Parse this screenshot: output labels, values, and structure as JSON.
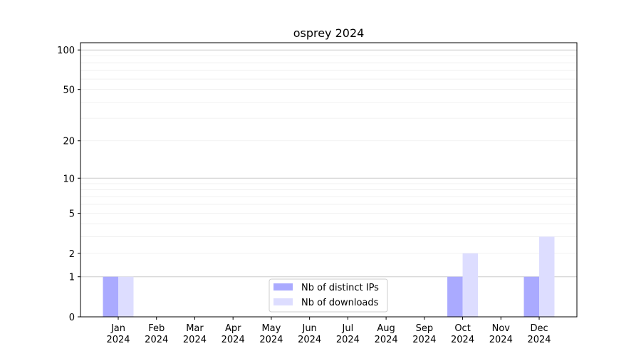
{
  "chart_data": {
    "type": "bar",
    "title": "osprey 2024",
    "xlabel": "",
    "ylabel": "",
    "categories": [
      "Jan\n2024",
      "Feb\n2024",
      "Mar\n2024",
      "Apr\n2024",
      "May\n2024",
      "Jun\n2024",
      "Jul\n2024",
      "Aug\n2024",
      "Sep\n2024",
      "Oct\n2024",
      "Nov\n2024",
      "Dec\n2024"
    ],
    "series": [
      {
        "name": "Nb of distinct IPs",
        "color": "#aaaaff",
        "values": [
          1,
          0,
          0,
          0,
          0,
          0,
          0,
          0,
          0,
          1,
          0,
          1
        ]
      },
      {
        "name": "Nb of downloads",
        "color": "#ddddff",
        "values": [
          1,
          0,
          0,
          0,
          0,
          0,
          0,
          0,
          0,
          2,
          0,
          3
        ]
      }
    ],
    "yscale": "symlog (log10(1+y))",
    "ylim": [
      0,
      113.5
    ],
    "yticks": [
      0,
      1,
      2,
      5,
      10,
      20,
      50,
      100
    ],
    "grid": true,
    "legend": "lower-center"
  }
}
